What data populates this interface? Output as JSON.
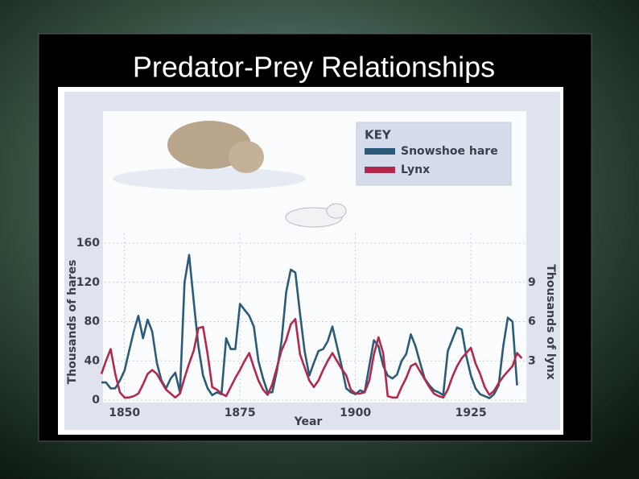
{
  "chart_data": {
    "type": "line",
    "title": "Predator-Prey Relationships",
    "x_label": "Year",
    "y_label": "Thousands of hares",
    "y2_label": "Thousands of lynx",
    "legend_title": "KEY",
    "x": [
      1845,
      1846,
      1847,
      1848,
      1849,
      1850,
      1851,
      1852,
      1853,
      1854,
      1855,
      1856,
      1857,
      1858,
      1859,
      1860,
      1861,
      1862,
      1863,
      1864,
      1865,
      1866,
      1867,
      1868,
      1869,
      1870,
      1871,
      1872,
      1873,
      1874,
      1875,
      1876,
      1877,
      1878,
      1879,
      1880,
      1881,
      1882,
      1883,
      1884,
      1885,
      1886,
      1887,
      1888,
      1889,
      1890,
      1891,
      1892,
      1893,
      1894,
      1895,
      1896,
      1897,
      1898,
      1899,
      1900,
      1901,
      1902,
      1903,
      1904,
      1905,
      1906,
      1907,
      1908,
      1909,
      1910,
      1911,
      1912,
      1913,
      1914,
      1915,
      1916,
      1917,
      1918,
      1919,
      1920,
      1921,
      1922,
      1923,
      1924,
      1925,
      1926,
      1927,
      1928,
      1929,
      1930,
      1931,
      1932,
      1933,
      1934,
      1935,
      1936
    ],
    "series": [
      {
        "name": "Snowshoe hare",
        "color": "#2b5b78",
        "axis": "y",
        "values": [
          18,
          18,
          12,
          12,
          20,
          30,
          50,
          70,
          86,
          63,
          82,
          70,
          38,
          20,
          12,
          22,
          28,
          8,
          120,
          148,
          100,
          55,
          25,
          12,
          5,
          8,
          6,
          63,
          52,
          52,
          98,
          92,
          86,
          75,
          40,
          22,
          8,
          8,
          30,
          60,
          110,
          133,
          130,
          88,
          50,
          25,
          38,
          50,
          52,
          60,
          75,
          55,
          35,
          12,
          8,
          6,
          10,
          8,
          35,
          61,
          55,
          35,
          25,
          22,
          26,
          40,
          47,
          67,
          55,
          38,
          22,
          15,
          10,
          8,
          5,
          50,
          62,
          74,
          72,
          45,
          25,
          12,
          6,
          4,
          2,
          6,
          15,
          55,
          84,
          80,
          15,
          null
        ]
      },
      {
        "name": "Lynx",
        "color": "#b3294b",
        "axis": "y2",
        "values": [
          2.0,
          3.0,
          3.9,
          2.0,
          0.6,
          0.2,
          0.2,
          0.3,
          0.5,
          1.2,
          2.0,
          2.3,
          2.0,
          1.4,
          0.8,
          0.5,
          0.2,
          0.5,
          1.7,
          2.8,
          3.8,
          5.5,
          5.6,
          3.5,
          1.0,
          0.8,
          0.5,
          0.3,
          1.0,
          1.7,
          2.3,
          3.0,
          3.6,
          2.5,
          1.5,
          0.8,
          0.4,
          1.2,
          2.5,
          3.8,
          4.6,
          5.8,
          6.2,
          3.5,
          2.5,
          1.5,
          1.0,
          1.5,
          2.3,
          3.0,
          3.6,
          3.0,
          2.4,
          1.9,
          0.8,
          0.5,
          0.5,
          0.6,
          1.5,
          3.5,
          4.8,
          3.6,
          0.3,
          0.2,
          0.2,
          1.0,
          1.7,
          2.6,
          2.8,
          2.2,
          1.6,
          1.0,
          0.5,
          0.3,
          0.2,
          0.8,
          1.8,
          2.6,
          3.2,
          3.6,
          4.0,
          2.8,
          2.0,
          1.0,
          0.4,
          0.7,
          1.3,
          1.8,
          2.2,
          2.6,
          3.6,
          3.2
        ]
      }
    ],
    "xlim": [
      1845,
      1937
    ],
    "xticks": [
      1850,
      1875,
      1900,
      1925
    ],
    "ylim": [
      0,
      160
    ],
    "yticks": [
      0,
      40,
      80,
      120,
      160
    ],
    "y2lim": [
      0,
      12
    ],
    "y2ticks": [
      3,
      6,
      9
    ],
    "grid": true
  }
}
